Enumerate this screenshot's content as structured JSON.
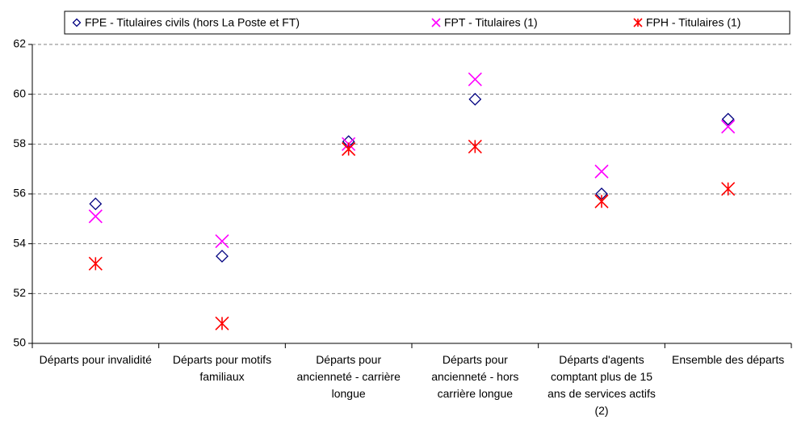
{
  "chart_data": {
    "type": "scatter",
    "categories": [
      "Départs pour invalidité",
      "Départs pour motifs familiaux",
      "Départs pour ancienneté - carrière longue",
      "Départs pour ancienneté - hors carrière longue",
      "Départs d'agents comptant plus de 15 ans de services actifs (2)",
      "Ensemble des départs"
    ],
    "series": [
      {
        "name": "FPE - Titulaires civils (hors La Poste et FT)",
        "color": "#000080",
        "marker": "diamond",
        "values": [
          55.6,
          53.5,
          58.1,
          59.8,
          56.0,
          59.0
        ]
      },
      {
        "name": "FPT - Titulaires (1)",
        "color": "#ff00ff",
        "marker": "x",
        "values": [
          55.1,
          54.1,
          58.0,
          60.6,
          56.9,
          58.7
        ]
      },
      {
        "name": "FPH - Titulaires (1)",
        "color": "#ff0000",
        "marker": "asterisk",
        "values": [
          53.2,
          50.8,
          57.8,
          57.9,
          55.7,
          56.2
        ]
      }
    ],
    "ylim": [
      50,
      62
    ],
    "yticks": [
      50,
      52,
      54,
      56,
      58,
      60,
      62
    ],
    "grid": true,
    "legend": "top"
  }
}
